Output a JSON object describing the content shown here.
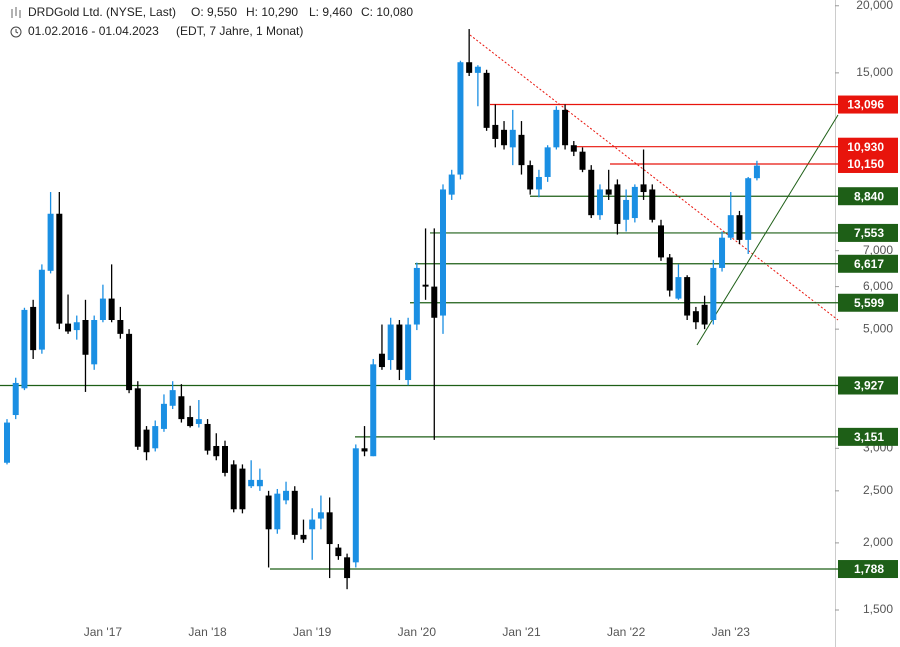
{
  "chart_data": {
    "type": "candlestick",
    "title": "DRDGold Ltd. (NYSE, Last)",
    "ohlc_labels": [
      "O: 9,550",
      "H: 10,290",
      "L: 9,460",
      "C: 10,080"
    ],
    "date_range": "01.02.2016 - 01.04.2023",
    "period": "(EDT, 7 Jahre, 1 Monat)",
    "log_scale": true,
    "up_color": "#1a8fe3",
    "down_color": "#000000",
    "ylim": [
      1.28,
      20.5
    ],
    "yticks": [
      {
        "value": 20,
        "label": "20,000"
      },
      {
        "value": 15,
        "label": "15,000"
      },
      {
        "value": 7,
        "label": "7,000"
      },
      {
        "value": 6,
        "label": "6,000"
      },
      {
        "value": 5,
        "label": "5,000"
      },
      {
        "value": 3,
        "label": "3,000"
      },
      {
        "value": 2.5,
        "label": "2,500"
      },
      {
        "value": 2,
        "label": "2,000"
      },
      {
        "value": 1.5,
        "label": "1,500"
      }
    ],
    "categories": [
      null,
      null,
      null,
      null,
      null,
      null,
      null,
      null,
      null,
      null,
      null,
      "Jan '17",
      null,
      null,
      null,
      null,
      null,
      null,
      null,
      null,
      null,
      null,
      null,
      "Jan '18",
      null,
      null,
      null,
      null,
      null,
      null,
      null,
      null,
      null,
      null,
      null,
      "Jan '19",
      null,
      null,
      null,
      null,
      null,
      null,
      null,
      null,
      null,
      null,
      null,
      "Jan '20",
      null,
      null,
      null,
      null,
      null,
      null,
      null,
      null,
      null,
      null,
      null,
      "Jan '21",
      null,
      null,
      null,
      null,
      null,
      null,
      null,
      null,
      null,
      null,
      null,
      "Jan '22",
      null,
      null,
      null,
      null,
      null,
      null,
      null,
      null,
      null,
      null,
      null,
      "Jan '23",
      null,
      null,
      null
    ],
    "open": [
      2.82,
      3.46,
      3.88,
      5.5,
      4.58,
      6.42,
      8.2,
      5.12,
      4.98,
      5.2,
      4.3,
      5.2,
      5.7,
      5.2,
      4.9,
      3.88,
      3.25,
      3.0,
      3.26,
      3.6,
      3.75,
      3.43,
      3.33,
      3.33,
      3.03,
      3.03,
      2.8,
      2.75,
      2.55,
      2.55,
      2.45,
      2.12,
      2.4,
      2.5,
      2.07,
      2.12,
      2.22,
      2.28,
      1.96,
      1.88,
      1.84,
      3.0,
      2.9,
      4.5,
      4.38,
      5.1,
      4.02,
      5.1,
      6.05,
      6.0,
      5.3,
      8.9,
      9.7,
      15.7,
      15.0,
      15.0,
      12.0,
      11.75,
      10.9,
      11.5,
      10.1,
      9.1,
      9.6,
      10.9,
      12.8,
      11.0,
      10.7,
      9.9,
      8.15,
      9.1,
      9.3,
      7.99,
      8.05,
      9.3,
      9.1,
      7.8,
      6.8,
      5.7,
      6.25,
      5.4,
      5.55,
      5.2,
      6.5,
      7.4,
      8.15,
      7.33,
      9.55
    ],
    "high": [
      3.4,
      4.06,
      5.48,
      5.67,
      6.6,
      9.0,
      9.0,
      5.8,
      5.3,
      5.67,
      5.3,
      6.05,
      6.6,
      5.5,
      5.0,
      4.0,
      3.3,
      3.38,
      3.78,
      4.0,
      3.95,
      3.6,
      3.69,
      3.4,
      3.2,
      3.1,
      2.85,
      2.8,
      2.85,
      2.75,
      2.5,
      2.52,
      2.6,
      2.55,
      2.21,
      2.32,
      2.45,
      2.43,
      1.99,
      1.91,
      3.05,
      3.3,
      4.4,
      5.1,
      5.25,
      5.2,
      5.25,
      6.65,
      7.7,
      7.7,
      9.3,
      9.9,
      15.8,
      18.1,
      15.5,
      15.2,
      13.1,
      12.2,
      12.8,
      12.2,
      10.3,
      9.9,
      11.0,
      13.0,
      13.1,
      11.2,
      10.9,
      10.1,
      9.3,
      9.9,
      9.5,
      9.1,
      9.3,
      10.8,
      9.3,
      7.99,
      6.9,
      6.6,
      6.3,
      5.5,
      5.77,
      6.73,
      7.6,
      9.0,
      8.3,
      9.6,
      10.29
    ],
    "low": [
      2.8,
      3.4,
      3.85,
      4.4,
      4.5,
      6.35,
      5.0,
      4.9,
      4.78,
      3.82,
      4.2,
      5.15,
      5.15,
      4.8,
      3.8,
      2.98,
      2.85,
      2.96,
      3.22,
      3.55,
      3.35,
      3.28,
      3.28,
      2.92,
      2.85,
      2.66,
      2.28,
      2.27,
      2.53,
      2.5,
      1.8,
      2.08,
      2.36,
      2.03,
      2.0,
      1.86,
      2.12,
      1.72,
      1.86,
      1.64,
      1.8,
      2.9,
      2.9,
      4.2,
      4.2,
      4.02,
      3.93,
      4.98,
      5.67,
      3.11,
      4.9,
      8.7,
      9.5,
      14.8,
      13.0,
      11.7,
      10.9,
      10.8,
      10.1,
      9.7,
      8.9,
      8.8,
      9.4,
      10.8,
      10.8,
      10.5,
      9.8,
      8.05,
      7.99,
      8.7,
      7.5,
      7.6,
      7.9,
      8.7,
      7.9,
      6.7,
      5.75,
      5.67,
      5.2,
      5.0,
      5.0,
      5.1,
      6.4,
      7.33,
      7.2,
      6.9,
      9.46
    ],
    "close": [
      3.35,
      3.97,
      5.43,
      4.57,
      6.45,
      8.2,
      5.12,
      4.95,
      5.15,
      4.48,
      5.2,
      5.7,
      5.2,
      4.9,
      3.85,
      3.02,
      2.95,
      3.3,
      3.63,
      3.85,
      3.4,
      3.3,
      3.4,
      2.97,
      2.9,
      2.7,
      2.31,
      2.31,
      2.62,
      2.62,
      2.12,
      2.47,
      2.5,
      2.07,
      2.03,
      2.21,
      2.28,
      1.99,
      1.89,
      1.72,
      3.0,
      2.96,
      4.3,
      4.25,
      5.1,
      4.2,
      5.1,
      6.5,
      6.0,
      5.25,
      9.1,
      9.7,
      15.7,
      15.0,
      15.4,
      11.85,
      11.3,
      11.0,
      11.75,
      10.1,
      9.1,
      9.6,
      10.9,
      12.8,
      11.0,
      10.7,
      9.9,
      8.15,
      9.1,
      8.9,
      7.85,
      8.7,
      9.2,
      9.0,
      7.99,
      6.8,
      5.9,
      6.25,
      5.3,
      5.15,
      5.1,
      6.5,
      7.4,
      8.15,
      7.33,
      9.55,
      10.08
    ],
    "levels": [
      {
        "value": 13.096,
        "label": "13,096",
        "color": "#e8140c"
      },
      {
        "value": 10.93,
        "label": "10,930",
        "color": "#e8140c"
      },
      {
        "value": 10.15,
        "label": "10,150",
        "color": "#e8140c"
      },
      {
        "value": 8.84,
        "label": "8,840",
        "color": "#1e5f17"
      },
      {
        "value": 7.553,
        "label": "7,553",
        "color": "#1e5f17"
      },
      {
        "value": 6.617,
        "label": "6,617",
        "color": "#1e5f17"
      },
      {
        "value": 5.599,
        "label": "5,599",
        "color": "#1e5f17"
      },
      {
        "value": 3.927,
        "label": "3,927",
        "color": "#1e5f17"
      },
      {
        "value": 3.151,
        "label": "3,151",
        "color": "#1e5f17"
      },
      {
        "value": 1.788,
        "label": "1,788",
        "color": "#1e5f17"
      }
    ]
  }
}
